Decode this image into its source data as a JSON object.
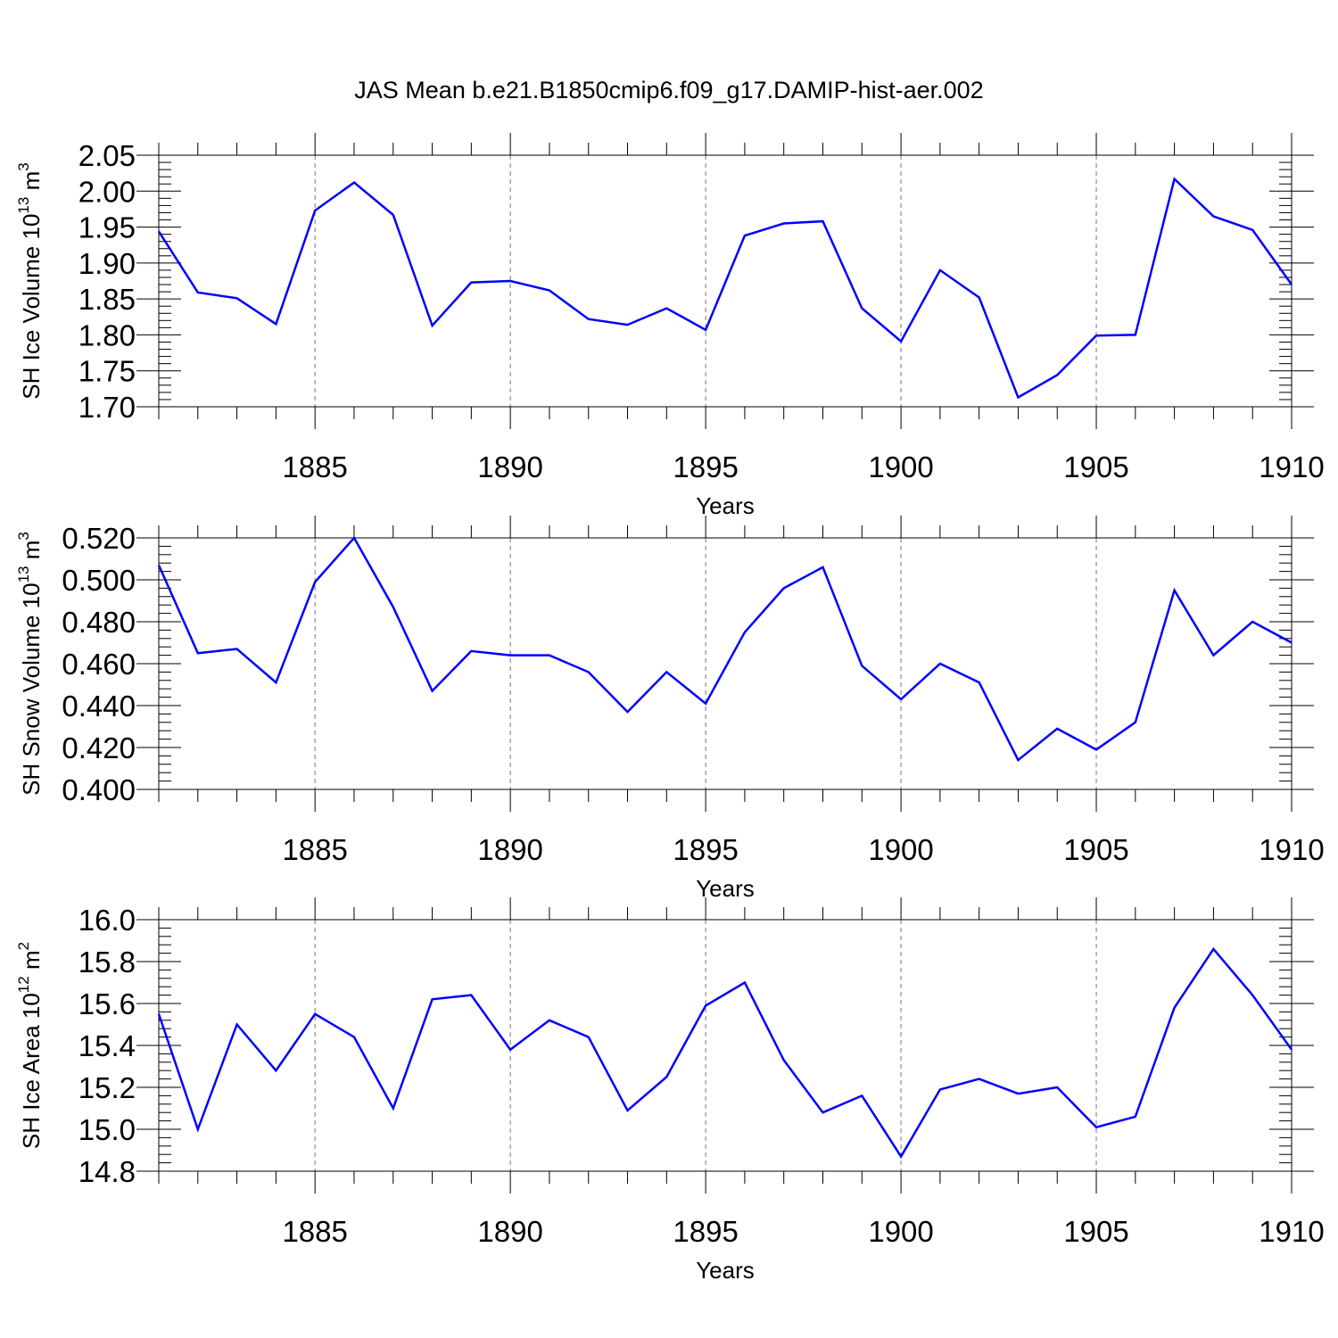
{
  "title": "JAS Mean b.e21.B1850cmip6.f09_g17.DAMIP-hist-aer.002",
  "chart_data": [
    {
      "type": "line",
      "xlabel": "Years",
      "ylabel_main": "SH Ice Volume 10",
      "ylabel_sup1": "13",
      "ylabel_unit": " m",
      "ylabel_sup2": "3",
      "xlim": [
        1881,
        1910
      ],
      "ylim": [
        1.7,
        2.05
      ],
      "xticks": [
        1885,
        1890,
        1895,
        1900,
        1905,
        1910
      ],
      "yticks": [
        "1.70",
        "1.75",
        "1.80",
        "1.85",
        "1.90",
        "1.95",
        "2.00",
        "2.05"
      ],
      "line_color": "#0000ff",
      "grid": "vertical dashed at labelled years",
      "x": [
        1881,
        1882,
        1883,
        1884,
        1885,
        1886,
        1887,
        1888,
        1889,
        1890,
        1891,
        1892,
        1893,
        1894,
        1895,
        1896,
        1897,
        1898,
        1899,
        1900,
        1901,
        1902,
        1903,
        1904,
        1905,
        1906,
        1907,
        1908,
        1909,
        1910
      ],
      "values": [
        1.944,
        1.859,
        1.851,
        1.815,
        1.973,
        2.012,
        1.967,
        1.813,
        1.873,
        1.875,
        1.862,
        1.822,
        1.814,
        1.837,
        1.807,
        1.938,
        1.955,
        1.958,
        1.837,
        1.791,
        1.89,
        1.852,
        1.713,
        1.744,
        1.799,
        1.8,
        2.017,
        1.965,
        1.946,
        1.87
      ]
    },
    {
      "type": "line",
      "xlabel": "Years",
      "ylabel_main": "SH Snow Volume 10",
      "ylabel_sup1": "13",
      "ylabel_unit": " m",
      "ylabel_sup2": "3",
      "xlim": [
        1881,
        1910
      ],
      "ylim": [
        0.4,
        0.52
      ],
      "xticks": [
        1885,
        1890,
        1895,
        1900,
        1905,
        1910
      ],
      "yticks": [
        "0.400",
        "0.420",
        "0.440",
        "0.460",
        "0.480",
        "0.500",
        "0.520"
      ],
      "line_color": "#0000ff",
      "grid": "vertical dashed at labelled years",
      "x": [
        1881,
        1882,
        1883,
        1884,
        1885,
        1886,
        1887,
        1888,
        1889,
        1890,
        1891,
        1892,
        1893,
        1894,
        1895,
        1896,
        1897,
        1898,
        1899,
        1900,
        1901,
        1902,
        1903,
        1904,
        1905,
        1906,
        1907,
        1908,
        1909,
        1910
      ],
      "values": [
        0.507,
        0.465,
        0.467,
        0.451,
        0.499,
        0.52,
        0.487,
        0.447,
        0.466,
        0.464,
        0.464,
        0.456,
        0.437,
        0.456,
        0.441,
        0.475,
        0.496,
        0.506,
        0.459,
        0.443,
        0.46,
        0.451,
        0.414,
        0.429,
        0.419,
        0.432,
        0.495,
        0.464,
        0.48,
        0.47
      ]
    },
    {
      "type": "line",
      "xlabel": "Years",
      "ylabel_main": "SH Ice Area 10",
      "ylabel_sup1": "12",
      "ylabel_unit": " m",
      "ylabel_sup2": "2",
      "xlim": [
        1881,
        1910
      ],
      "ylim": [
        14.8,
        16.0
      ],
      "xticks": [
        1885,
        1890,
        1895,
        1900,
        1905,
        1910
      ],
      "yticks": [
        "14.8",
        "15.0",
        "15.2",
        "15.4",
        "15.6",
        "15.8",
        "16.0"
      ],
      "line_color": "#0000ff",
      "grid": "vertical dashed at labelled years",
      "x": [
        1881,
        1882,
        1883,
        1884,
        1885,
        1886,
        1887,
        1888,
        1889,
        1890,
        1891,
        1892,
        1893,
        1894,
        1895,
        1896,
        1897,
        1898,
        1899,
        1900,
        1901,
        1902,
        1903,
        1904,
        1905,
        1906,
        1907,
        1908,
        1909,
        1910
      ],
      "values": [
        15.55,
        15.0,
        15.5,
        15.28,
        15.55,
        15.44,
        15.1,
        15.62,
        15.64,
        15.38,
        15.52,
        15.44,
        15.09,
        15.25,
        15.59,
        15.7,
        15.33,
        15.08,
        15.16,
        14.87,
        15.19,
        15.24,
        15.17,
        15.2,
        15.01,
        15.06,
        15.58,
        15.86,
        15.64,
        15.38
      ]
    }
  ]
}
